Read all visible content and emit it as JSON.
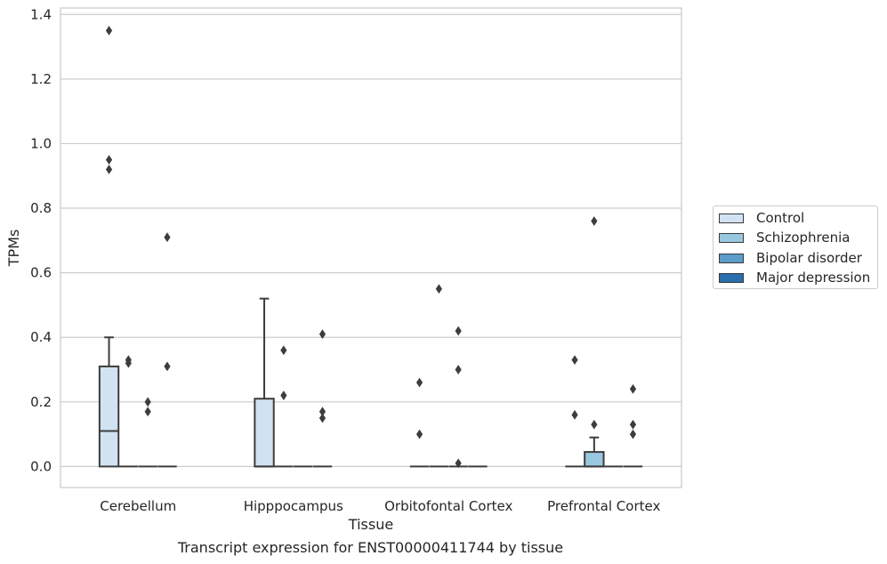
{
  "caption": "Transcript expression for ENST00000411744 by tissue",
  "chart_data": {
    "type": "boxplot",
    "title": "",
    "xlabel": "Tissue",
    "ylabel": "TPMs",
    "ylim": [
      -0.065,
      1.42
    ],
    "yticks": [
      0.0,
      0.2,
      0.4,
      0.6,
      0.8,
      1.0,
      1.2,
      1.4
    ],
    "ytick_labels": [
      "0.0",
      "0.2",
      "0.4",
      "0.6",
      "0.8",
      "1.0",
      "1.2",
      "1.4"
    ],
    "grid": "horizontal",
    "legend_position": "right",
    "categories": [
      "Cerebellum",
      "Hipppocampus",
      "Orbitofontal Cortex",
      "Prefrontal Cortex"
    ],
    "series": [
      {
        "name": "Control",
        "color": "#d1e2f2",
        "boxes": [
          {
            "q1": 0.0,
            "median": 0.11,
            "q3": 0.31,
            "whisker_low": 0.0,
            "whisker_high": 0.4,
            "outliers": [
              1.35,
              0.95,
              0.92
            ]
          },
          {
            "q1": 0.0,
            "median": 0.0,
            "q3": 0.21,
            "whisker_low": 0.0,
            "whisker_high": 0.52,
            "outliers": []
          },
          {
            "q1": 0.0,
            "median": 0.0,
            "q3": 0.0,
            "whisker_low": 0.0,
            "whisker_high": 0.0,
            "outliers": [
              0.26,
              0.1
            ]
          },
          {
            "q1": 0.0,
            "median": 0.0,
            "q3": 0.0,
            "whisker_low": 0.0,
            "whisker_high": 0.0,
            "outliers": [
              0.33,
              0.16
            ]
          }
        ]
      },
      {
        "name": "Schizophrenia",
        "color": "#9ac7e0",
        "boxes": [
          {
            "q1": 0.0,
            "median": 0.0,
            "q3": 0.0,
            "whisker_low": 0.0,
            "whisker_high": 0.0,
            "outliers": [
              0.33,
              0.32
            ]
          },
          {
            "q1": 0.0,
            "median": 0.0,
            "q3": 0.0,
            "whisker_low": 0.0,
            "whisker_high": 0.0,
            "outliers": [
              0.36,
              0.22
            ]
          },
          {
            "q1": 0.0,
            "median": 0.0,
            "q3": 0.0,
            "whisker_low": 0.0,
            "whisker_high": 0.0,
            "outliers": [
              0.55
            ]
          },
          {
            "q1": 0.0,
            "median": 0.0,
            "q3": 0.045,
            "whisker_low": 0.0,
            "whisker_high": 0.09,
            "outliers": [
              0.76,
              0.13
            ]
          }
        ]
      },
      {
        "name": "Bipolar disorder",
        "color": "#5b9cca",
        "boxes": [
          {
            "q1": 0.0,
            "median": 0.0,
            "q3": 0.0,
            "whisker_low": 0.0,
            "whisker_high": 0.0,
            "outliers": [
              0.2,
              0.17
            ]
          },
          {
            "q1": 0.0,
            "median": 0.0,
            "q3": 0.0,
            "whisker_low": 0.0,
            "whisker_high": 0.0,
            "outliers": []
          },
          {
            "q1": 0.0,
            "median": 0.0,
            "q3": 0.0,
            "whisker_low": 0.0,
            "whisker_high": 0.0,
            "outliers": [
              0.42,
              0.3,
              0.01
            ]
          },
          {
            "q1": 0.0,
            "median": 0.0,
            "q3": 0.0,
            "whisker_low": 0.0,
            "whisker_high": 0.0,
            "outliers": []
          }
        ]
      },
      {
        "name": "Major depression",
        "color": "#2a6ead",
        "boxes": [
          {
            "q1": 0.0,
            "median": 0.0,
            "q3": 0.0,
            "whisker_low": 0.0,
            "whisker_high": 0.0,
            "outliers": [
              0.71,
              0.31
            ]
          },
          {
            "q1": 0.0,
            "median": 0.0,
            "q3": 0.0,
            "whisker_low": 0.0,
            "whisker_high": 0.0,
            "outliers": [
              0.41,
              0.17,
              0.15
            ]
          },
          {
            "q1": 0.0,
            "median": 0.0,
            "q3": 0.0,
            "whisker_low": 0.0,
            "whisker_high": 0.0,
            "outliers": []
          },
          {
            "q1": 0.0,
            "median": 0.0,
            "q3": 0.0,
            "whisker_low": 0.0,
            "whisker_high": 0.0,
            "outliers": [
              0.24,
              0.13,
              0.1
            ]
          }
        ]
      }
    ]
  }
}
